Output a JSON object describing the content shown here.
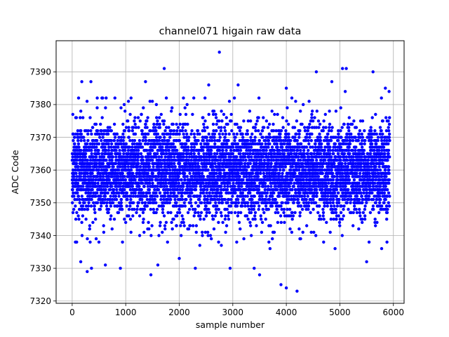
{
  "chart_data": {
    "type": "scatter",
    "title": "channel071 higain raw data",
    "xlabel": "sample number",
    "ylabel": "ADC Code",
    "xlim": [
      -300,
      6200
    ],
    "ylim": [
      7319.3,
      7399.5
    ],
    "xticks": [
      0,
      1000,
      2000,
      3000,
      4000,
      5000,
      6000
    ],
    "yticks": [
      7320,
      7330,
      7340,
      7350,
      7360,
      7370,
      7380,
      7390
    ],
    "grid": true,
    "marker_color": "#0000ff",
    "series": [
      {
        "n": 6000,
        "x_range": [
          0,
          5930
        ],
        "band": [
          7344,
          7374
        ],
        "center": 7360,
        "outliers": [
          {
            "x": 60,
            "y": 7338
          },
          {
            "x": 120,
            "y": 7382
          },
          {
            "x": 160,
            "y": 7332
          },
          {
            "x": 180,
            "y": 7387
          },
          {
            "x": 280,
            "y": 7329
          },
          {
            "x": 350,
            "y": 7387
          },
          {
            "x": 360,
            "y": 7330
          },
          {
            "x": 500,
            "y": 7338
          },
          {
            "x": 620,
            "y": 7331
          },
          {
            "x": 900,
            "y": 7330
          },
          {
            "x": 1100,
            "y": 7382
          },
          {
            "x": 1370,
            "y": 7387
          },
          {
            "x": 1470,
            "y": 7328
          },
          {
            "x": 1600,
            "y": 7331
          },
          {
            "x": 1720,
            "y": 7391
          },
          {
            "x": 2000,
            "y": 7333
          },
          {
            "x": 2300,
            "y": 7330
          },
          {
            "x": 2550,
            "y": 7386
          },
          {
            "x": 2750,
            "y": 7396
          },
          {
            "x": 2950,
            "y": 7330
          },
          {
            "x": 3100,
            "y": 7386
          },
          {
            "x": 3400,
            "y": 7330
          },
          {
            "x": 3500,
            "y": 7328
          },
          {
            "x": 3900,
            "y": 7325
          },
          {
            "x": 4000,
            "y": 7324
          },
          {
            "x": 4200,
            "y": 7323
          },
          {
            "x": 4000,
            "y": 7385
          },
          {
            "x": 4560,
            "y": 7390
          },
          {
            "x": 4850,
            "y": 7387
          },
          {
            "x": 5050,
            "y": 7391
          },
          {
            "x": 5120,
            "y": 7391
          },
          {
            "x": 5100,
            "y": 7384
          },
          {
            "x": 5500,
            "y": 7332
          },
          {
            "x": 5620,
            "y": 7390
          },
          {
            "x": 5780,
            "y": 7336
          },
          {
            "x": 5850,
            "y": 7385
          },
          {
            "x": 5920,
            "y": 7384
          },
          {
            "x": 5880,
            "y": 7338
          }
        ]
      }
    ]
  }
}
